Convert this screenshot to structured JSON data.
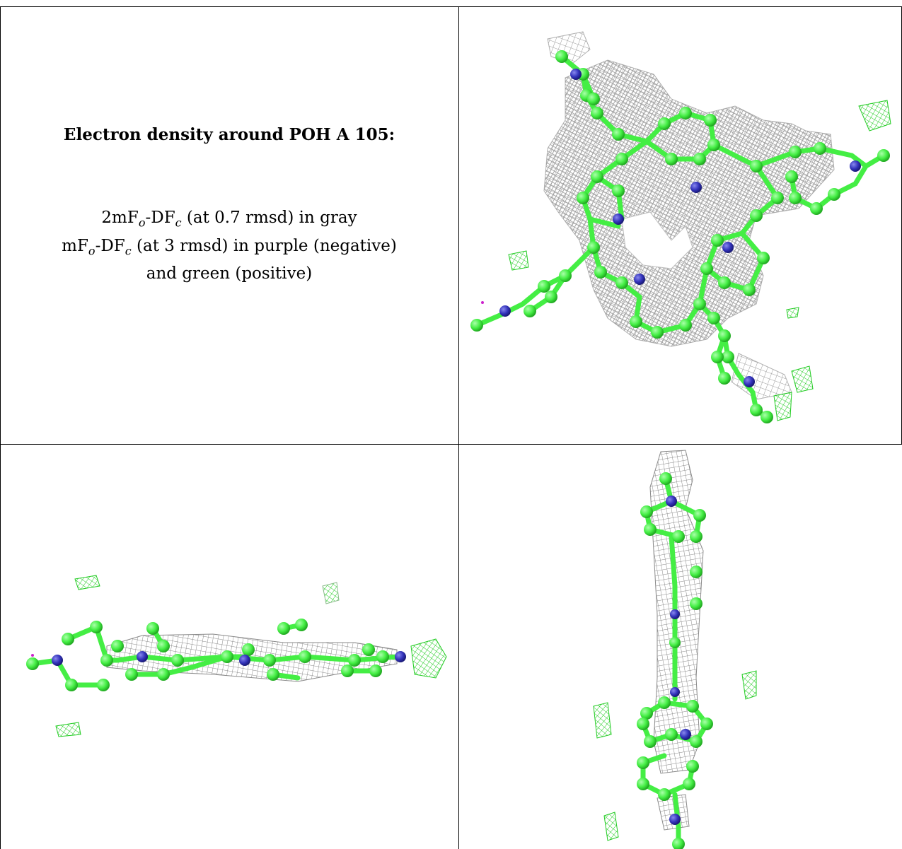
{
  "caption": {
    "title": "Electron density around POH A 105:",
    "line1": "2mFo-DFc (at 0.7 rmsd) in gray",
    "line2": "mFo-DFc (at 3 rmsd) in purple (negative)",
    "line3": "and green (positive)"
  },
  "colors": {
    "carbon": "#44ee44",
    "nitrogen": "#3333bb",
    "mesh_2fofc": "#9a9a9a",
    "mesh_positive": "#22cc22",
    "mesh_negative": "#cc22cc",
    "border": "#000000"
  },
  "panels": [
    {
      "name": "top-right-view",
      "orientation": "face-on"
    },
    {
      "name": "bottom-left-view",
      "orientation": "edge-on-horizontal"
    },
    {
      "name": "bottom-right-view",
      "orientation": "edge-on-vertical"
    }
  ]
}
